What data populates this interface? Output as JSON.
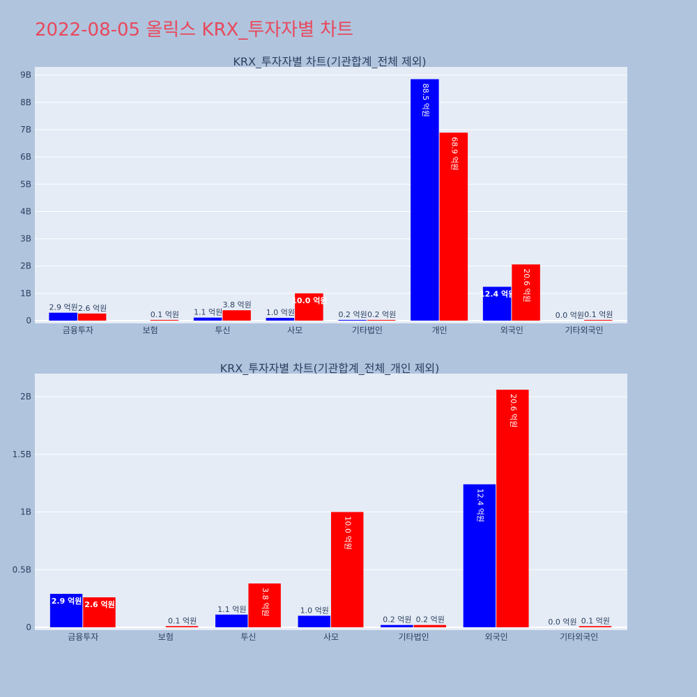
{
  "page": {
    "title": "2022-08-05 올릭스 KRX_투자자별 차트"
  },
  "colors": {
    "background": "#b0c4de",
    "plot_bg": "#e5ecf6",
    "buy": "#0000ff",
    "sell": "#ff0000",
    "title": "#e8485b",
    "text": "#2a3f5f"
  },
  "chart_data": [
    {
      "type": "bar",
      "title": "KRX_투자자별 차트(기관합계_전체 제외)",
      "categories": [
        "금융투자",
        "보험",
        "투신",
        "사모",
        "기타법인",
        "개인",
        "외국인",
        "기타외국인"
      ],
      "series": [
        {
          "color": "#0000ff",
          "values": [
            0.29,
            0,
            0.11,
            0.1,
            0.02,
            8.85,
            1.24,
            0.0
          ],
          "labels": [
            "2.9 억원",
            "",
            "1.1 억원",
            "1.0 억원",
            "0.2 억원",
            "88.5 억원",
            "12.4 억원",
            "0.0 억원"
          ]
        },
        {
          "color": "#ff0000",
          "values": [
            0.26,
            0.01,
            0.38,
            1.0,
            0.02,
            6.89,
            2.06,
            0.01
          ],
          "labels": [
            "2.6 억원",
            "0.1 억원",
            "3.8 억원",
            "10.0 억원",
            "0.2 억원",
            "68.9 억원",
            "20.6 억원",
            "0.1 억원"
          ]
        }
      ],
      "ylim": [
        0,
        9.3
      ],
      "yticks": [
        0,
        1,
        2,
        3,
        4,
        5,
        6,
        7,
        8,
        9
      ],
      "ytick_labels": [
        "0",
        "1B",
        "2B",
        "3B",
        "4B",
        "5B",
        "6B",
        "7B",
        "8B",
        "9B"
      ],
      "grid": true
    },
    {
      "type": "bar",
      "title": "KRX_투자자별 차트(기관합계_전체_개인 제외)",
      "categories": [
        "금융투자",
        "보험",
        "투신",
        "사모",
        "기타법인",
        "외국인",
        "기타외국인"
      ],
      "series": [
        {
          "color": "#0000ff",
          "values": [
            0.29,
            0,
            0.11,
            0.1,
            0.02,
            1.24,
            0.0
          ],
          "labels": [
            "2.9 억원",
            "",
            "1.1 억원",
            "1.0 억원",
            "0.2 억원",
            "12.4 억원",
            "0.0 억원"
          ]
        },
        {
          "color": "#ff0000",
          "values": [
            0.26,
            0.01,
            0.38,
            1.0,
            0.02,
            2.06,
            0.01
          ],
          "labels": [
            "2.6 억원",
            "0.1 억원",
            "3.8 억원",
            "10.0 억원",
            "0.2 억원",
            "20.6 억원",
            "0.1 억원"
          ]
        }
      ],
      "ylim": [
        0,
        2.2
      ],
      "yticks": [
        0,
        0.5,
        1,
        1.5,
        2
      ],
      "ytick_labels": [
        "0",
        "0.5B",
        "1B",
        "1.5B",
        "2B"
      ],
      "grid": true
    }
  ]
}
